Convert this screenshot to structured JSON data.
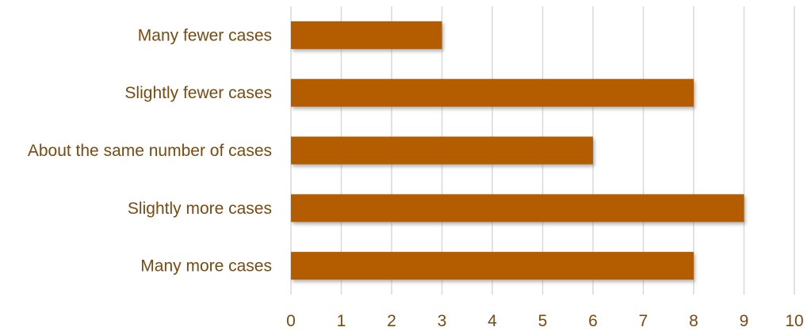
{
  "chart_data": {
    "type": "bar",
    "orientation": "horizontal",
    "categories": [
      "Many fewer cases",
      "Slightly fewer cases",
      "About the same number of cases",
      "Slightly more cases",
      "Many more cases"
    ],
    "values": [
      3,
      8,
      6,
      9,
      8
    ],
    "xlim": [
      0,
      10
    ],
    "xticks": [
      "0",
      "1",
      "2",
      "3",
      "4",
      "5",
      "6",
      "7",
      "8",
      "9",
      "10"
    ],
    "title": "",
    "xlabel": "",
    "ylabel": "",
    "grid": "vertical",
    "legend": "none",
    "colors": {
      "bar": "#b35c06",
      "bar_shadow": "#8a8a8a",
      "text": "#7a4a12",
      "grid": "#d9d9d9"
    }
  }
}
